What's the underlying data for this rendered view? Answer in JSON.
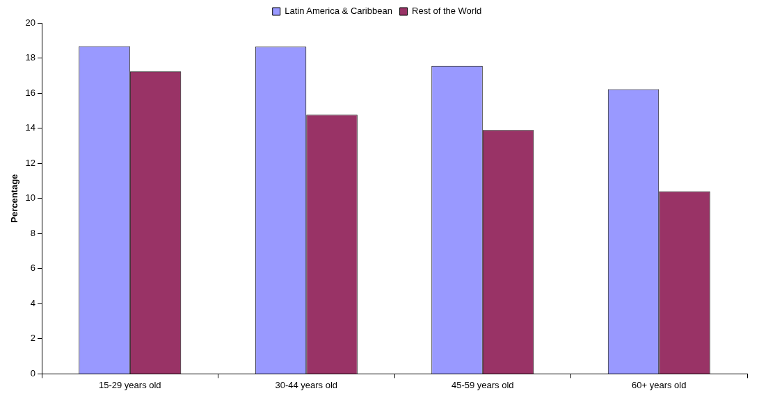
{
  "chart_data": {
    "type": "bar",
    "ylabel": "Percentage",
    "categories": [
      "15-29 years old",
      "30-44 years old",
      "45-59 years old",
      "60+ years old"
    ],
    "series": [
      {
        "name": "Latin America & Caribbean",
        "color": "#9999ff",
        "values": [
          18.67,
          18.64,
          17.56,
          16.22
        ]
      },
      {
        "name": "Rest of the World",
        "color": "#993366",
        "values": [
          17.23,
          14.77,
          13.9,
          10.4
        ]
      }
    ],
    "ylim": [
      0,
      20
    ],
    "yticks": [
      0,
      2,
      4,
      6,
      8,
      10,
      12,
      14,
      16,
      18,
      20
    ],
    "grid": false,
    "legend": "top"
  }
}
